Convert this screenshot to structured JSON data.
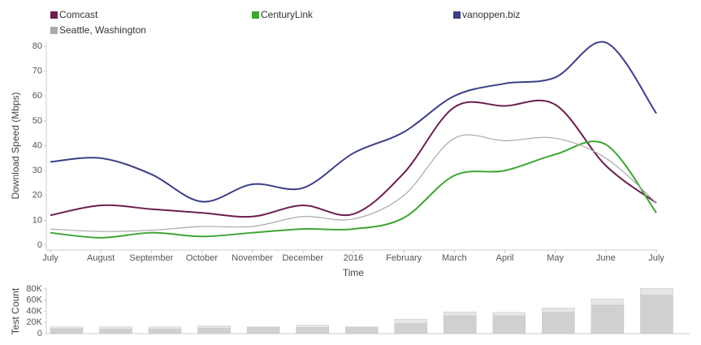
{
  "chart_data": [
    {
      "type": "line",
      "x_label": "Time",
      "y_label": "Download Speed (Mbps)",
      "categories": [
        "July",
        "August",
        "September",
        "October",
        "November",
        "December",
        "2016",
        "February",
        "March",
        "April",
        "May",
        "June",
        "July"
      ],
      "ylim": [
        0,
        80
      ],
      "yticks": [
        0,
        10,
        20,
        30,
        40,
        50,
        60,
        70,
        80
      ],
      "series": [
        {
          "name": "Comcast",
          "color": "#6b1f4e",
          "values": [
            12,
            16,
            14.5,
            13,
            11.5,
            16,
            12.5,
            29,
            55.5,
            56,
            56.5,
            32,
            17
          ]
        },
        {
          "name": "CenturyLink",
          "color": "#3fa535",
          "values": [
            5,
            3,
            5,
            3.5,
            5,
            6.5,
            6.5,
            11,
            28,
            30,
            36.5,
            40.5,
            13
          ]
        },
        {
          "name": "vanoppen.biz",
          "color": "#3c3f85",
          "values": [
            33.5,
            35,
            28.5,
            17.5,
            24.5,
            23,
            37,
            45.5,
            60,
            65,
            67.5,
            81.5,
            53
          ]
        },
        {
          "name": "Seattle, Washington",
          "color": "#aaaaaa",
          "values": [
            6.5,
            5.5,
            6,
            7.5,
            7.5,
            11.5,
            10.5,
            20,
            43,
            42,
            43,
            35,
            17
          ]
        }
      ]
    },
    {
      "type": "stacked_bar",
      "y_label": "Test Count",
      "ylim": [
        0,
        80000
      ],
      "yticks": [
        0,
        {
          "value": 20000,
          "label": "20K"
        },
        {
          "value": 40000,
          "label": "40K"
        },
        {
          "value": 60000,
          "label": "60K"
        },
        {
          "value": 80000,
          "label": "80K"
        }
      ],
      "series": [
        {
          "color": "#d0d0d0",
          "values": [
            9000,
            8000,
            8000,
            10000,
            11000,
            11000,
            11000,
            18000,
            32000,
            32000,
            38000,
            51000,
            69000
          ]
        },
        {
          "color": "#e6e6e6",
          "values": [
            3000,
            4000,
            4000,
            4000,
            1000,
            4000,
            1000,
            8000,
            7000,
            6000,
            8000,
            11000,
            12000
          ]
        }
      ]
    }
  ]
}
